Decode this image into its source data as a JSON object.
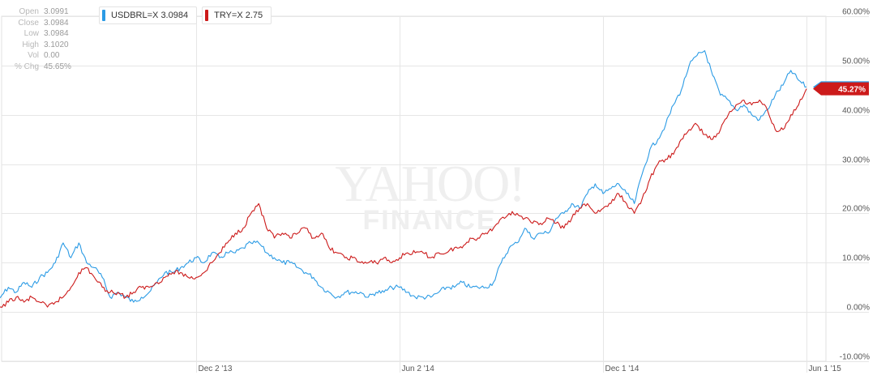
{
  "ohlc": [
    {
      "key": "Open",
      "value": "3.0991"
    },
    {
      "key": "Close",
      "value": "3.0984"
    },
    {
      "key": "Low",
      "value": "3.0984"
    },
    {
      "key": "High",
      "value": "3.1020"
    },
    {
      "key": "Vol",
      "value": "0.00"
    },
    {
      "key": "% Chg",
      "value": "45.65%"
    }
  ],
  "legend": [
    {
      "label": "USDBRL=X 3.0984",
      "color": "#2b9be5"
    },
    {
      "label": "TRY=X 2.75",
      "color": "#cc1a1a"
    }
  ],
  "watermark": {
    "line1": "YAHOO!",
    "line2": "FINANCE"
  },
  "chart_data": {
    "type": "line",
    "x_ticks": [
      "Dec 2 '13",
      "Jun 2 '14",
      "Dec 1 '14",
      "Jun 1 '15"
    ],
    "y_ticks": [
      "60.00%",
      "50.00%",
      "40.00%",
      "30.00%",
      "20.00%",
      "10.00%",
      "0.00%",
      "-10.00%"
    ],
    "ylim": [
      -10,
      60
    ],
    "grid": true,
    "last_value_label": "45.27%",
    "series": [
      {
        "name": "USDBRL=X",
        "color": "#2b9be5",
        "points": [
          [
            "2013-06-03",
            0
          ],
          [
            "2013-06-10",
            3
          ],
          [
            "2013-06-17",
            5
          ],
          [
            "2013-06-24",
            4
          ],
          [
            "2013-07-01",
            6
          ],
          [
            "2013-07-08",
            5
          ],
          [
            "2013-07-15",
            7
          ],
          [
            "2013-07-22",
            8
          ],
          [
            "2013-07-29",
            10
          ],
          [
            "2013-08-05",
            14
          ],
          [
            "2013-08-12",
            11
          ],
          [
            "2013-08-19",
            14
          ],
          [
            "2013-08-26",
            10
          ],
          [
            "2013-09-02",
            9
          ],
          [
            "2013-09-09",
            7
          ],
          [
            "2013-09-16",
            3
          ],
          [
            "2013-09-23",
            4
          ],
          [
            "2013-09-30",
            3
          ],
          [
            "2013-10-07",
            2
          ],
          [
            "2013-10-14",
            3
          ],
          [
            "2013-10-21",
            4
          ],
          [
            "2013-10-28",
            6
          ],
          [
            "2013-11-04",
            8
          ],
          [
            "2013-11-11",
            8
          ],
          [
            "2013-11-18",
            9
          ],
          [
            "2013-11-25",
            10
          ],
          [
            "2013-12-02",
            11
          ],
          [
            "2013-12-09",
            10
          ],
          [
            "2013-12-16",
            12
          ],
          [
            "2013-12-23",
            11
          ],
          [
            "2013-12-30",
            12
          ],
          [
            "2014-01-06",
            12
          ],
          [
            "2014-01-13",
            13
          ],
          [
            "2014-01-20",
            14
          ],
          [
            "2014-01-27",
            14
          ],
          [
            "2014-02-03",
            12
          ],
          [
            "2014-02-10",
            11
          ],
          [
            "2014-02-17",
            10
          ],
          [
            "2014-02-24",
            10
          ],
          [
            "2014-03-03",
            9
          ],
          [
            "2014-03-10",
            8
          ],
          [
            "2014-03-17",
            7
          ],
          [
            "2014-03-24",
            5
          ],
          [
            "2014-03-31",
            4
          ],
          [
            "2014-04-07",
            3
          ],
          [
            "2014-04-14",
            4
          ],
          [
            "2014-04-21",
            4
          ],
          [
            "2014-04-28",
            4
          ],
          [
            "2014-05-05",
            3
          ],
          [
            "2014-05-12",
            4
          ],
          [
            "2014-05-19",
            4
          ],
          [
            "2014-05-26",
            5
          ],
          [
            "2014-06-02",
            5
          ],
          [
            "2014-06-09",
            4
          ],
          [
            "2014-06-16",
            3
          ],
          [
            "2014-06-23",
            3
          ],
          [
            "2014-06-30",
            3
          ],
          [
            "2014-07-07",
            4
          ],
          [
            "2014-07-14",
            5
          ],
          [
            "2014-07-21",
            5
          ],
          [
            "2014-07-28",
            6
          ],
          [
            "2014-08-04",
            5
          ],
          [
            "2014-08-11",
            5
          ],
          [
            "2014-08-18",
            5
          ],
          [
            "2014-08-25",
            6
          ],
          [
            "2014-09-01",
            10
          ],
          [
            "2014-09-08",
            13
          ],
          [
            "2014-09-15",
            14
          ],
          [
            "2014-09-22",
            17
          ],
          [
            "2014-09-29",
            15
          ],
          [
            "2014-10-06",
            16
          ],
          [
            "2014-10-13",
            16
          ],
          [
            "2014-10-20",
            19
          ],
          [
            "2014-10-27",
            20
          ],
          [
            "2014-11-03",
            22
          ],
          [
            "2014-11-10",
            21
          ],
          [
            "2014-11-17",
            24
          ],
          [
            "2014-11-24",
            26
          ],
          [
            "2014-12-01",
            24
          ],
          [
            "2014-12-08",
            25
          ],
          [
            "2014-12-15",
            26
          ],
          [
            "2014-12-22",
            24
          ],
          [
            "2014-12-29",
            22
          ],
          [
            "2015-01-05",
            28
          ],
          [
            "2015-01-12",
            33
          ],
          [
            "2015-01-19",
            35
          ],
          [
            "2015-01-26",
            38
          ],
          [
            "2015-02-02",
            42
          ],
          [
            "2015-02-09",
            45
          ],
          [
            "2015-02-16",
            50
          ],
          [
            "2015-02-23",
            52
          ],
          [
            "2015-03-02",
            53
          ],
          [
            "2015-03-09",
            48
          ],
          [
            "2015-03-16",
            44
          ],
          [
            "2015-03-23",
            43
          ],
          [
            "2015-03-30",
            41
          ],
          [
            "2015-04-06",
            42
          ],
          [
            "2015-04-13",
            40
          ],
          [
            "2015-04-20",
            39
          ],
          [
            "2015-04-27",
            41
          ],
          [
            "2015-05-04",
            44
          ],
          [
            "2015-05-11",
            46
          ],
          [
            "2015-05-18",
            49
          ],
          [
            "2015-05-25",
            47
          ],
          [
            "2015-06-01",
            45.65
          ]
        ]
      },
      {
        "name": "TRY=X",
        "color": "#cc1a1a",
        "points": [
          [
            "2013-06-03",
            -1
          ],
          [
            "2013-06-10",
            1
          ],
          [
            "2013-06-17",
            2
          ],
          [
            "2013-06-24",
            3
          ],
          [
            "2013-07-01",
            2
          ],
          [
            "2013-07-08",
            3
          ],
          [
            "2013-07-15",
            2
          ],
          [
            "2013-07-22",
            1
          ],
          [
            "2013-07-29",
            2
          ],
          [
            "2013-08-05",
            3
          ],
          [
            "2013-08-12",
            5
          ],
          [
            "2013-08-19",
            8
          ],
          [
            "2013-08-26",
            9
          ],
          [
            "2013-09-02",
            7
          ],
          [
            "2013-09-09",
            5
          ],
          [
            "2013-09-16",
            4
          ],
          [
            "2013-09-23",
            4
          ],
          [
            "2013-09-30",
            3
          ],
          [
            "2013-10-07",
            4
          ],
          [
            "2013-10-14",
            5
          ],
          [
            "2013-10-21",
            5
          ],
          [
            "2013-10-28",
            6
          ],
          [
            "2013-11-04",
            7
          ],
          [
            "2013-11-11",
            8
          ],
          [
            "2013-11-18",
            8
          ],
          [
            "2013-11-25",
            7
          ],
          [
            "2013-12-02",
            7
          ],
          [
            "2013-12-09",
            8
          ],
          [
            "2013-12-16",
            10
          ],
          [
            "2013-12-23",
            12
          ],
          [
            "2013-12-30",
            14
          ],
          [
            "2014-01-06",
            16
          ],
          [
            "2014-01-13",
            17
          ],
          [
            "2014-01-20",
            20
          ],
          [
            "2014-01-27",
            22
          ],
          [
            "2014-02-03",
            17
          ],
          [
            "2014-02-10",
            15
          ],
          [
            "2014-02-17",
            16
          ],
          [
            "2014-02-24",
            15
          ],
          [
            "2014-03-03",
            16
          ],
          [
            "2014-03-10",
            17
          ],
          [
            "2014-03-17",
            15
          ],
          [
            "2014-03-24",
            16
          ],
          [
            "2014-03-31",
            13
          ],
          [
            "2014-04-07",
            12
          ],
          [
            "2014-04-14",
            11
          ],
          [
            "2014-04-21",
            11
          ],
          [
            "2014-04-28",
            10
          ],
          [
            "2014-05-05",
            10
          ],
          [
            "2014-05-12",
            10
          ],
          [
            "2014-05-19",
            11
          ],
          [
            "2014-05-26",
            10
          ],
          [
            "2014-06-02",
            11
          ],
          [
            "2014-06-09",
            12
          ],
          [
            "2014-06-16",
            12
          ],
          [
            "2014-06-23",
            12
          ],
          [
            "2014-06-30",
            11
          ],
          [
            "2014-07-07",
            12
          ],
          [
            "2014-07-14",
            12
          ],
          [
            "2014-07-21",
            13
          ],
          [
            "2014-07-28",
            13
          ],
          [
            "2014-08-04",
            15
          ],
          [
            "2014-08-11",
            15
          ],
          [
            "2014-08-18",
            16
          ],
          [
            "2014-08-25",
            17
          ],
          [
            "2014-09-01",
            19
          ],
          [
            "2014-09-08",
            20
          ],
          [
            "2014-09-15",
            20
          ],
          [
            "2014-09-22",
            19
          ],
          [
            "2014-09-29",
            18
          ],
          [
            "2014-10-06",
            18
          ],
          [
            "2014-10-13",
            19
          ],
          [
            "2014-10-20",
            18
          ],
          [
            "2014-10-27",
            17
          ],
          [
            "2014-11-03",
            19
          ],
          [
            "2014-11-10",
            21
          ],
          [
            "2014-11-17",
            22
          ],
          [
            "2014-11-24",
            20
          ],
          [
            "2014-12-01",
            21
          ],
          [
            "2014-12-08",
            22
          ],
          [
            "2014-12-15",
            24
          ],
          [
            "2014-12-22",
            22
          ],
          [
            "2014-12-29",
            20
          ],
          [
            "2015-01-05",
            23
          ],
          [
            "2015-01-12",
            27
          ],
          [
            "2015-01-19",
            30
          ],
          [
            "2015-01-26",
            31
          ],
          [
            "2015-02-02",
            32
          ],
          [
            "2015-02-09",
            35
          ],
          [
            "2015-02-16",
            37
          ],
          [
            "2015-02-23",
            38
          ],
          [
            "2015-03-02",
            36
          ],
          [
            "2015-03-09",
            35
          ],
          [
            "2015-03-16",
            37
          ],
          [
            "2015-03-23",
            40
          ],
          [
            "2015-03-30",
            42
          ],
          [
            "2015-04-06",
            43
          ],
          [
            "2015-04-13",
            42
          ],
          [
            "2015-04-20",
            43
          ],
          [
            "2015-04-27",
            41
          ],
          [
            "2015-05-04",
            37
          ],
          [
            "2015-05-11",
            37
          ],
          [
            "2015-05-18",
            40
          ],
          [
            "2015-05-25",
            42
          ],
          [
            "2015-06-01",
            45.27
          ]
        ]
      }
    ]
  }
}
